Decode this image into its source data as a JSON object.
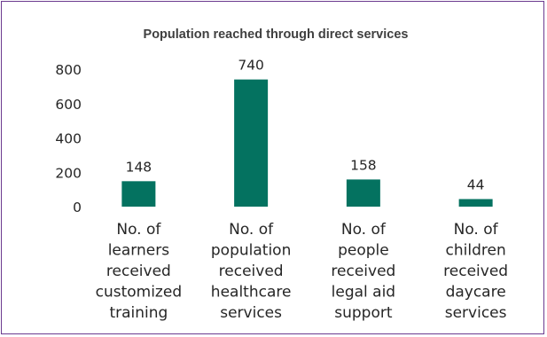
{
  "chart_data": {
    "type": "bar",
    "title": "Population reached through direct services",
    "xlabel": "",
    "ylabel": "",
    "categories": [
      [
        "No. of",
        "learners",
        "received",
        "customized",
        "training"
      ],
      [
        "No. of",
        "population",
        "received",
        "healthcare",
        "services"
      ],
      [
        "No. of",
        "people",
        "received",
        "legal aid",
        "support"
      ],
      [
        "No. of",
        "children",
        "received",
        "daycare",
        "services"
      ]
    ],
    "values": [
      148,
      740,
      158,
      44
    ],
    "data_labels": [
      "148",
      "740",
      "158",
      "44"
    ],
    "ylim": [
      0,
      800
    ],
    "yticks": [
      "0",
      "200",
      "400",
      "600",
      "800"
    ],
    "grid": false,
    "legend": "none",
    "bar_color": "#047260",
    "border_color": "#6b3a8f"
  }
}
